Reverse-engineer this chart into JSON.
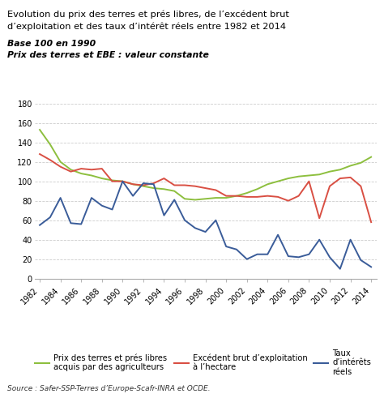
{
  "title_line1": "Evolution du prix des terres et prés libres, de l’excédent brut",
  "title_line2": "d’exploitation et des taux d’intérêt réels entre 1982 et 2014",
  "subtitle1": "Base 100 en 1990",
  "subtitle2": "Prix des terres et EBE : valeur constante",
  "source": "Source : Safer-SSP-Terres d’Europe-Scafr-INRA et OCDE.",
  "years": [
    1982,
    1983,
    1984,
    1985,
    1986,
    1987,
    1988,
    1989,
    1990,
    1991,
    1992,
    1993,
    1994,
    1995,
    1996,
    1997,
    1998,
    1999,
    2000,
    2001,
    2002,
    2003,
    2004,
    2005,
    2006,
    2007,
    2008,
    2009,
    2010,
    2011,
    2012,
    2013,
    2014
  ],
  "green_line": [
    153,
    138,
    120,
    112,
    108,
    106,
    103,
    101,
    100,
    97,
    95,
    93,
    92,
    90,
    82,
    81,
    82,
    83,
    83,
    85,
    88,
    92,
    97,
    100,
    103,
    105,
    106,
    107,
    110,
    112,
    116,
    119,
    125
  ],
  "red_line": [
    128,
    122,
    115,
    110,
    113,
    112,
    113,
    100,
    100,
    97,
    96,
    98,
    103,
    96,
    96,
    95,
    93,
    91,
    85,
    85,
    84,
    84,
    85,
    84,
    80,
    85,
    100,
    62,
    95,
    103,
    104,
    95,
    58
  ],
  "blue_line": [
    55,
    63,
    83,
    57,
    56,
    83,
    75,
    71,
    100,
    85,
    98,
    97,
    65,
    81,
    60,
    52,
    48,
    60,
    33,
    30,
    20,
    25,
    25,
    45,
    23,
    22,
    25,
    40,
    22,
    10,
    40,
    19,
    12
  ],
  "green_color": "#8dbf3e",
  "red_color": "#d94f43",
  "blue_color": "#3a5c99",
  "ylim": [
    0,
    180
  ],
  "yticks": [
    0,
    20,
    40,
    60,
    80,
    100,
    120,
    140,
    160,
    180
  ],
  "legend_green": "Prix des terres et prés libres\nacquis par des agriculteurs",
  "legend_red": "Excédent brut d’exploitation\nà l’hectare",
  "legend_blue": "Taux\nd’intérêts\nréels"
}
